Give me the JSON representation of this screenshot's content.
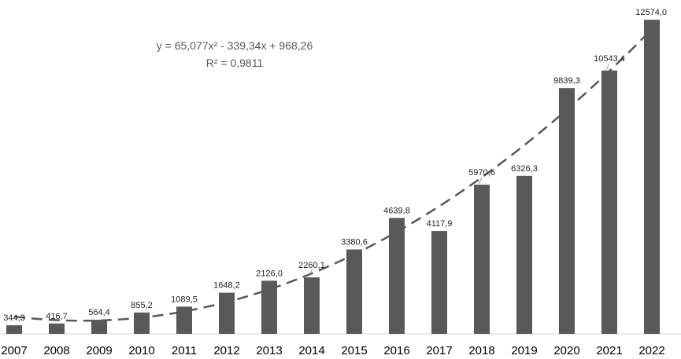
{
  "chart_data": {
    "type": "bar",
    "categories": [
      "2007",
      "2008",
      "2009",
      "2010",
      "2011",
      "2012",
      "2013",
      "2014",
      "2015",
      "2016",
      "2017",
      "2018",
      "2019",
      "2020",
      "2021",
      "2022"
    ],
    "values": [
      344.3,
      416.7,
      564.4,
      855.2,
      1089.5,
      1648.2,
      2126.0,
      2260.1,
      3380.6,
      4639.8,
      4117.9,
      5970.6,
      6326.3,
      9839.3,
      10543.4,
      12574.0
    ],
    "value_labels": [
      "344,3",
      "416,7",
      "564,4",
      "855,2",
      "1089,5",
      "1648,2",
      "2126,0",
      "2260,1",
      "3380,6",
      "4639,8",
      "4117,9",
      "5970,6",
      "6326,3",
      "9839,3",
      "10543,4",
      "12574,0"
    ],
    "trendline": {
      "type": "polynomial",
      "coefficients": [
        65.077,
        -339.34,
        968.26
      ],
      "equation": "y = 65,077x² - 339,34x + 968,26",
      "r_squared": "R² = 0,9811"
    },
    "colors": {
      "bar": "#595959",
      "trend": "#595959"
    },
    "ylim": [
      0,
      12800
    ],
    "grid": false,
    "legend": "none"
  }
}
